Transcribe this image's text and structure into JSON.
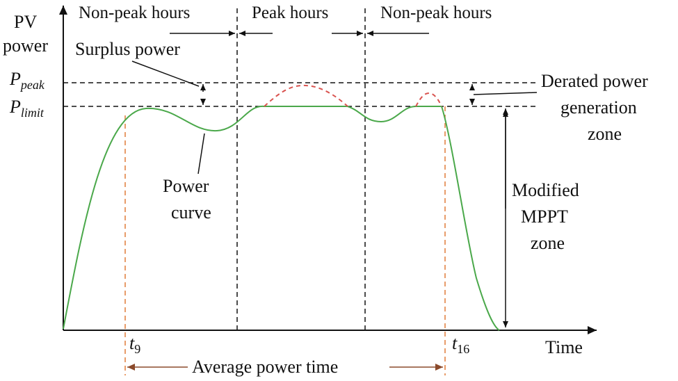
{
  "axes": {
    "y_label_line1": "PV",
    "y_label_line2": "power",
    "x_label": "Time"
  },
  "levels": {
    "p_peak_main": "P",
    "p_peak_sub": "peak",
    "p_limit_main": "P",
    "p_limit_sub": "limit"
  },
  "periods": {
    "left": "Non-peak hours",
    "middle": "Peak hours",
    "right": "Non-peak hours"
  },
  "annotations": {
    "surplus_power": "Surplus power",
    "derated_line1": "Derated power",
    "derated_line2": "generation",
    "derated_line3": "zone",
    "power_curve_line1": "Power",
    "power_curve_line2": "curve",
    "mppt_line1": "Modified",
    "mppt_line2": "MPPT",
    "mppt_line3": "zone",
    "average_power_time": "Average power time"
  },
  "markers": {
    "t9_main": "t",
    "t9_sub": "9",
    "t16_main": "t",
    "t16_sub": "16"
  },
  "colors": {
    "power_curve": "#4aa84a",
    "clipped_peak": "#d9534f",
    "time_markers": "#e07b39",
    "average_arrow": "#8b4a2b"
  }
}
